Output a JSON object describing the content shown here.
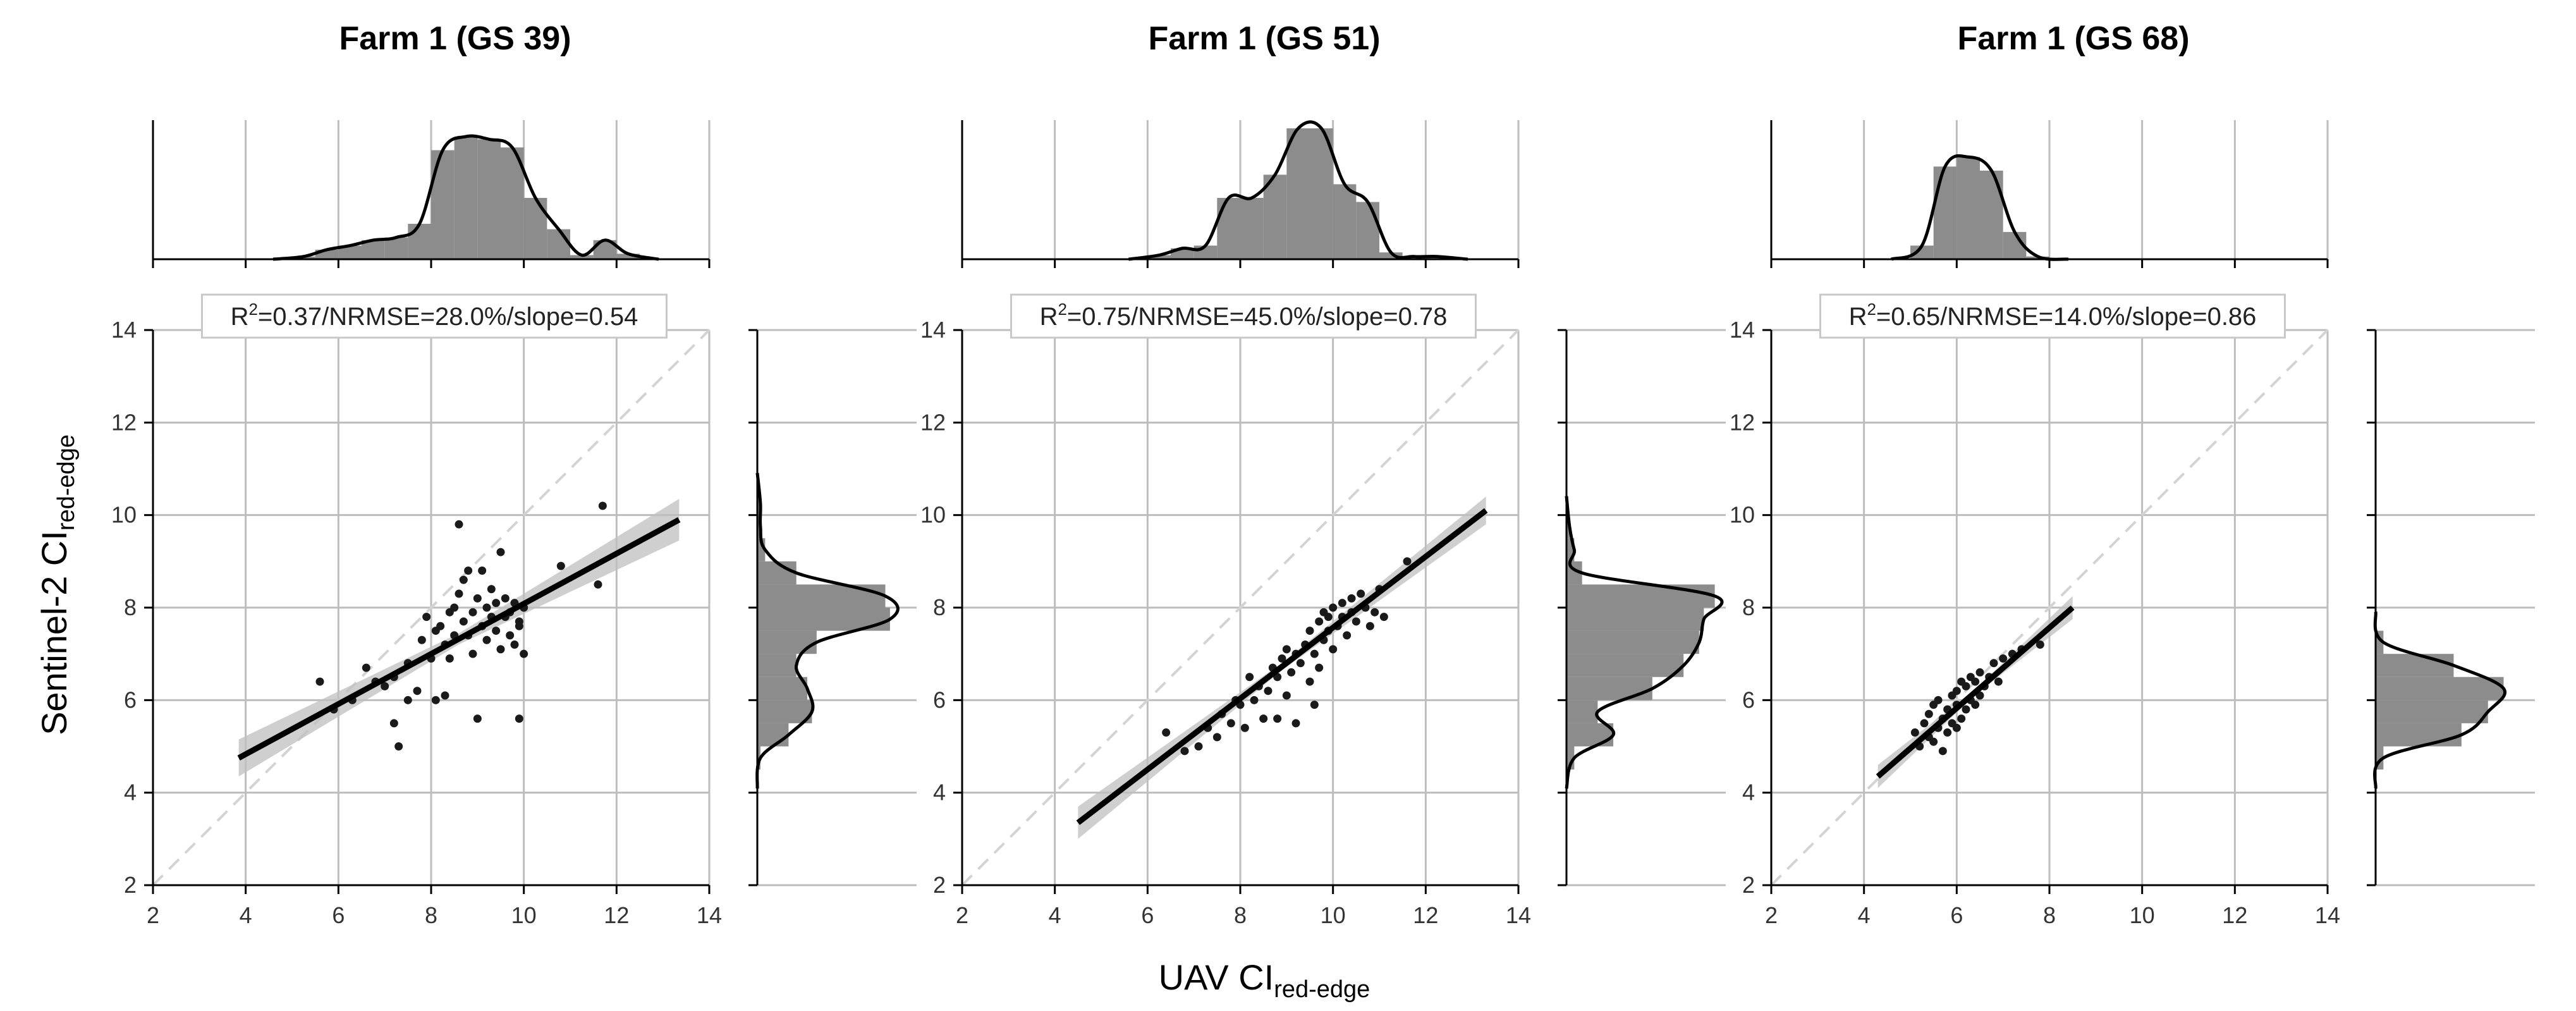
{
  "figure": {
    "ylabel_main": "Sentinel-2 CI",
    "ylabel_sub": "red-edge",
    "xlabel_main": "UAV CI",
    "xlabel_sub": "red-edge"
  },
  "colors": {
    "points": "#1a1a1a",
    "fit_line": "#000000",
    "confidence_band": "#bfbfbf",
    "identity_line": "#d3d3d3",
    "histogram": "#8c8c8c",
    "grid": "#bdbdbd",
    "stats_box_border": "#c8c8c8"
  },
  "chart_data": [
    {
      "type": "scatter",
      "title": "Farm 1 (GS 39)",
      "stats": {
        "r2": "0.37",
        "nrmse": "28.0%",
        "slope": "0.54"
      },
      "xlim": [
        2,
        14
      ],
      "ylim": [
        2,
        14
      ],
      "ticks": [
        2,
        4,
        6,
        8,
        10,
        12,
        14
      ],
      "grid": true,
      "identity_line": true,
      "fit": {
        "x": [
          3.85,
          13.35
        ],
        "y": [
          4.75,
          9.9
        ],
        "band_halfwidth": [
          0.4,
          0.12,
          0.45
        ]
      },
      "points": [
        [
          5.6,
          6.4
        ],
        [
          5.9,
          5.8
        ],
        [
          6.3,
          6.0
        ],
        [
          6.6,
          6.7
        ],
        [
          6.8,
          6.4
        ],
        [
          7.0,
          6.3
        ],
        [
          7.2,
          5.5
        ],
        [
          7.2,
          6.5
        ],
        [
          7.3,
          5.0
        ],
        [
          7.5,
          6.0
        ],
        [
          7.5,
          6.8
        ],
        [
          7.7,
          6.2
        ],
        [
          7.8,
          7.3
        ],
        [
          7.9,
          7.8
        ],
        [
          8.0,
          6.9
        ],
        [
          8.1,
          7.5
        ],
        [
          8.1,
          6.0
        ],
        [
          8.2,
          7.6
        ],
        [
          8.3,
          6.1
        ],
        [
          8.3,
          7.2
        ],
        [
          8.4,
          7.9
        ],
        [
          8.4,
          6.9
        ],
        [
          8.5,
          8.0
        ],
        [
          8.5,
          7.4
        ],
        [
          8.6,
          9.8
        ],
        [
          8.6,
          8.3
        ],
        [
          8.7,
          7.7
        ],
        [
          8.7,
          8.6
        ],
        [
          8.8,
          7.4
        ],
        [
          8.8,
          8.8
        ],
        [
          8.9,
          7.9
        ],
        [
          8.9,
          7.0
        ],
        [
          9.0,
          8.2
        ],
        [
          9.0,
          5.6
        ],
        [
          9.1,
          7.6
        ],
        [
          9.1,
          8.8
        ],
        [
          9.2,
          8.0
        ],
        [
          9.2,
          7.3
        ],
        [
          9.3,
          7.8
        ],
        [
          9.3,
          8.4
        ],
        [
          9.4,
          7.5
        ],
        [
          9.4,
          8.1
        ],
        [
          9.5,
          7.1
        ],
        [
          9.5,
          9.2
        ],
        [
          9.6,
          7.8
        ],
        [
          9.6,
          8.2
        ],
        [
          9.7,
          7.4
        ],
        [
          9.7,
          7.9
        ],
        [
          9.8,
          7.2
        ],
        [
          9.8,
          8.1
        ],
        [
          9.9,
          5.6
        ],
        [
          9.9,
          7.6
        ],
        [
          10.0,
          8.0
        ],
        [
          10.0,
          7.0
        ],
        [
          10.8,
          8.9
        ],
        [
          11.6,
          8.5
        ],
        [
          11.7,
          10.2
        ],
        [
          9.9,
          7.7
        ]
      ],
      "x_hist": {
        "bins": [
          5,
          5.5,
          6,
          6.5,
          7,
          7.5,
          8,
          8.5,
          9,
          9.5,
          10,
          10.5,
          11,
          11.5,
          12,
          12.5
        ],
        "density": [
          0.02,
          0.07,
          0.1,
          0.14,
          0.16,
          0.26,
          0.8,
          0.9,
          0.88,
          0.82,
          0.45,
          0.22,
          0.03,
          0.14,
          0.04
        ]
      },
      "y_hist": {
        "bins": [
          4.5,
          5,
          5.5,
          6,
          6.5,
          7,
          7.5,
          8,
          8.5,
          9,
          9.5,
          10,
          10.5
        ],
        "density": [
          0.02,
          0.2,
          0.35,
          0.32,
          0.25,
          0.38,
          0.85,
          0.82,
          0.25,
          0.05,
          0.02,
          0.02
        ]
      }
    },
    {
      "type": "scatter",
      "title": "Farm 1 (GS 51)",
      "stats": {
        "r2": "0.75",
        "nrmse": "45.0%",
        "slope": "0.78"
      },
      "xlim": [
        2,
        14
      ],
      "ylim": [
        2,
        14
      ],
      "ticks": [
        2,
        4,
        6,
        8,
        10,
        12,
        14
      ],
      "grid": true,
      "identity_line": true,
      "fit": {
        "x": [
          4.5,
          13.3
        ],
        "y": [
          3.35,
          10.1
        ],
        "band_halfwidth": [
          0.35,
          0.08,
          0.3
        ]
      },
      "points": [
        [
          6.4,
          5.3
        ],
        [
          6.8,
          4.9
        ],
        [
          7.1,
          5.0
        ],
        [
          7.3,
          5.4
        ],
        [
          7.5,
          5.2
        ],
        [
          7.6,
          5.7
        ],
        [
          7.8,
          5.5
        ],
        [
          7.9,
          6.0
        ],
        [
          8.0,
          5.9
        ],
        [
          8.1,
          5.4
        ],
        [
          8.2,
          6.5
        ],
        [
          8.3,
          6.0
        ],
        [
          8.4,
          6.3
        ],
        [
          8.5,
          5.6
        ],
        [
          8.6,
          6.2
        ],
        [
          8.7,
          6.7
        ],
        [
          8.8,
          6.5
        ],
        [
          8.8,
          5.6
        ],
        [
          8.9,
          6.9
        ],
        [
          9.0,
          6.1
        ],
        [
          9.0,
          7.1
        ],
        [
          9.1,
          6.6
        ],
        [
          9.2,
          7.0
        ],
        [
          9.2,
          5.5
        ],
        [
          9.3,
          6.8
        ],
        [
          9.4,
          7.2
        ],
        [
          9.5,
          6.4
        ],
        [
          9.5,
          7.5
        ],
        [
          9.6,
          7.0
        ],
        [
          9.7,
          7.7
        ],
        [
          9.7,
          6.7
        ],
        [
          9.8,
          7.3
        ],
        [
          9.8,
          7.9
        ],
        [
          9.9,
          7.5
        ],
        [
          10.0,
          8.0
        ],
        [
          10.0,
          7.1
        ],
        [
          10.1,
          7.6
        ],
        [
          10.2,
          7.8
        ],
        [
          10.2,
          8.1
        ],
        [
          10.3,
          7.4
        ],
        [
          10.4,
          7.9
        ],
        [
          10.4,
          8.2
        ],
        [
          10.5,
          7.7
        ],
        [
          10.6,
          8.3
        ],
        [
          10.7,
          8.0
        ],
        [
          10.8,
          7.6
        ],
        [
          10.9,
          7.9
        ],
        [
          11.0,
          8.4
        ],
        [
          11.1,
          7.8
        ],
        [
          11.6,
          9.0
        ],
        [
          9.6,
          5.9
        ],
        [
          9.9,
          7.8
        ]
      ],
      "x_hist": {
        "bins": [
          6,
          6.5,
          7,
          7.5,
          8,
          8.5,
          9,
          9.5,
          10,
          10.5,
          11,
          11.5,
          12,
          12.5
        ],
        "density": [
          0.03,
          0.08,
          0.1,
          0.45,
          0.45,
          0.62,
          0.96,
          0.96,
          0.55,
          0.42,
          0.05,
          0.02,
          0.02
        ]
      },
      "y_hist": {
        "bins": [
          4.5,
          5,
          5.5,
          6,
          6.5,
          7,
          7.5,
          8,
          8.5,
          9,
          9.5,
          10
        ],
        "density": [
          0.05,
          0.3,
          0.2,
          0.55,
          0.75,
          0.85,
          0.88,
          0.95,
          0.1,
          0.05,
          0.02
        ]
      }
    },
    {
      "type": "scatter",
      "title": "Farm 1 (GS 68)",
      "stats": {
        "r2": "0.65",
        "nrmse": "14.0%",
        "slope": "0.86"
      },
      "xlim": [
        2,
        14
      ],
      "ylim": [
        2,
        14
      ],
      "ticks": [
        2,
        4,
        6,
        8,
        10,
        12,
        14
      ],
      "grid": true,
      "identity_line": true,
      "fit": {
        "x": [
          4.3,
          8.5
        ],
        "y": [
          4.35,
          8.0
        ],
        "band_halfwidth": [
          0.25,
          0.06,
          0.25
        ]
      },
      "points": [
        [
          5.1,
          5.3
        ],
        [
          5.2,
          5.0
        ],
        [
          5.3,
          5.5
        ],
        [
          5.4,
          5.2
        ],
        [
          5.4,
          5.7
        ],
        [
          5.5,
          5.1
        ],
        [
          5.5,
          5.9
        ],
        [
          5.6,
          5.4
        ],
        [
          5.6,
          6.0
        ],
        [
          5.7,
          5.6
        ],
        [
          5.7,
          4.9
        ],
        [
          5.8,
          5.8
        ],
        [
          5.8,
          5.3
        ],
        [
          5.9,
          6.1
        ],
        [
          5.9,
          5.5
        ],
        [
          6.0,
          5.9
        ],
        [
          6.0,
          6.2
        ],
        [
          6.1,
          5.6
        ],
        [
          6.1,
          6.4
        ],
        [
          6.2,
          5.8
        ],
        [
          6.2,
          6.3
        ],
        [
          6.3,
          6.0
        ],
        [
          6.3,
          6.5
        ],
        [
          6.4,
          5.9
        ],
        [
          6.4,
          6.4
        ],
        [
          6.5,
          6.1
        ],
        [
          6.5,
          6.6
        ],
        [
          6.6,
          6.3
        ],
        [
          6.7,
          6.5
        ],
        [
          6.8,
          6.8
        ],
        [
          7.0,
          6.9
        ],
        [
          7.2,
          7.0
        ],
        [
          7.4,
          7.1
        ],
        [
          7.8,
          7.2
        ],
        [
          6.9,
          6.4
        ],
        [
          6.0,
          5.4
        ]
      ],
      "x_hist": {
        "bins": [
          5,
          5.5,
          6,
          6.5,
          7,
          7.5,
          8
        ],
        "density": [
          0.1,
          0.68,
          0.75,
          0.65,
          0.2,
          0.02
        ]
      },
      "y_hist": {
        "bins": [
          4.5,
          5,
          5.5,
          6,
          6.5,
          7,
          7.5
        ],
        "density": [
          0.05,
          0.55,
          0.72,
          0.82,
          0.5,
          0.05
        ]
      }
    }
  ]
}
